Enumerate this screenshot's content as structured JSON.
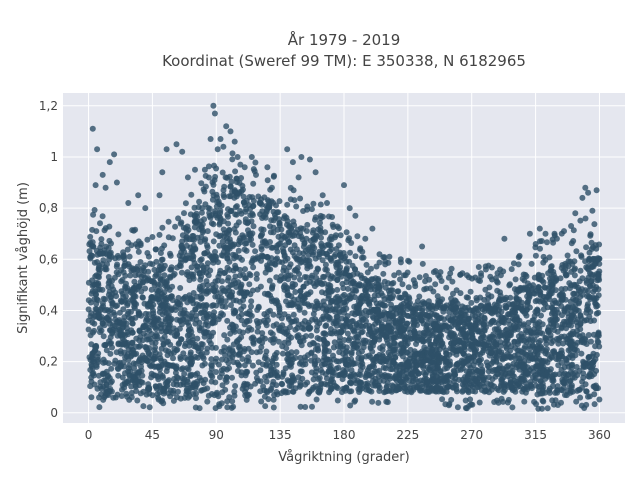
{
  "chart_data": {
    "type": "scatter",
    "title_line1": "År 1979 - 2019",
    "title_line2": "Koordinat (Sweref 99 TM): E 350338, N 6182965",
    "xlabel": "Vågriktning (grader)",
    "ylabel": "Signifikant våghöjd (m)",
    "xlim": [
      -18,
      378
    ],
    "ylim": [
      -0.04,
      1.25
    ],
    "x_ticks": [
      0,
      45,
      90,
      135,
      180,
      225,
      270,
      315,
      360
    ],
    "x_tick_labels": [
      "0",
      "45",
      "90",
      "135",
      "180",
      "225",
      "270",
      "315",
      "360"
    ],
    "y_ticks": [
      0,
      0.2,
      0.4,
      0.6,
      0.8,
      1.0,
      1.2
    ],
    "y_tick_labels": [
      "0",
      "0,2",
      "0,4",
      "0,6",
      "0,8",
      "1",
      "1,2"
    ],
    "grid": true,
    "marker_color": "#2e5068",
    "marker_opacity": 0.8,
    "envelope": {
      "x": [
        0,
        15,
        30,
        45,
        60,
        75,
        90,
        105,
        120,
        135,
        150,
        165,
        180,
        195,
        210,
        225,
        240,
        255,
        270,
        285,
        300,
        315,
        330,
        345,
        360
      ],
      "upper": [
        0.66,
        0.6,
        0.56,
        0.55,
        0.6,
        0.74,
        0.84,
        0.86,
        0.82,
        0.78,
        0.72,
        0.66,
        0.6,
        0.52,
        0.47,
        0.44,
        0.42,
        0.41,
        0.41,
        0.42,
        0.46,
        0.52,
        0.57,
        0.6,
        0.6
      ],
      "lower": [
        0.05,
        0.05,
        0.05,
        0.05,
        0.05,
        0.05,
        0.06,
        0.06,
        0.06,
        0.07,
        0.07,
        0.08,
        0.08,
        0.08,
        0.08,
        0.08,
        0.08,
        0.08,
        0.08,
        0.08,
        0.08,
        0.07,
        0.07,
        0.06,
        0.05
      ]
    },
    "outliers": [
      [
        3,
        1.11
      ],
      [
        5,
        0.89
      ],
      [
        6,
        1.03
      ],
      [
        10,
        0.93
      ],
      [
        12,
        0.88
      ],
      [
        15,
        0.98
      ],
      [
        18,
        1.01
      ],
      [
        20,
        0.9
      ],
      [
        28,
        0.82
      ],
      [
        35,
        0.85
      ],
      [
        40,
        0.8
      ],
      [
        50,
        0.85
      ],
      [
        52,
        0.94
      ],
      [
        55,
        1.03
      ],
      [
        62,
        1.05
      ],
      [
        66,
        1.02
      ],
      [
        70,
        0.92
      ],
      [
        75,
        0.95
      ],
      [
        82,
        0.95
      ],
      [
        86,
        1.07
      ],
      [
        88,
        1.2
      ],
      [
        89,
        1.17
      ],
      [
        91,
        1.03
      ],
      [
        93,
        1.07
      ],
      [
        95,
        1.04
      ],
      [
        97,
        1.12
      ],
      [
        100,
        1.1
      ],
      [
        103,
        1.06
      ],
      [
        105,
        1.0
      ],
      [
        107,
        0.97
      ],
      [
        110,
        0.96
      ],
      [
        115,
        1.0
      ],
      [
        118,
        0.93
      ],
      [
        126,
        0.96
      ],
      [
        140,
        1.03
      ],
      [
        144,
        0.98
      ],
      [
        148,
        0.92
      ],
      [
        150,
        1.0
      ],
      [
        156,
        0.99
      ],
      [
        160,
        0.94
      ],
      [
        165,
        0.85
      ],
      [
        168,
        0.82
      ],
      [
        180,
        0.89
      ],
      [
        184,
        0.8
      ],
      [
        188,
        0.77
      ],
      [
        195,
        0.68
      ],
      [
        200,
        0.72
      ],
      [
        205,
        0.62
      ],
      [
        212,
        0.61
      ],
      [
        220,
        0.6
      ],
      [
        226,
        0.59
      ],
      [
        235,
        0.65
      ],
      [
        240,
        0.52
      ],
      [
        248,
        0.55
      ],
      [
        262,
        0.54
      ],
      [
        268,
        0.53
      ],
      [
        275,
        0.57
      ],
      [
        280,
        0.56
      ],
      [
        290,
        0.56
      ],
      [
        293,
        0.68
      ],
      [
        303,
        0.58
      ],
      [
        311,
        0.7
      ],
      [
        318,
        0.72
      ],
      [
        322,
        0.7
      ],
      [
        330,
        0.68
      ],
      [
        335,
        0.71
      ],
      [
        340,
        0.73
      ],
      [
        343,
        0.78
      ],
      [
        348,
        0.84
      ],
      [
        350,
        0.88
      ],
      [
        352,
        0.86
      ],
      [
        355,
        0.79
      ],
      [
        358,
        0.87
      ]
    ]
  }
}
